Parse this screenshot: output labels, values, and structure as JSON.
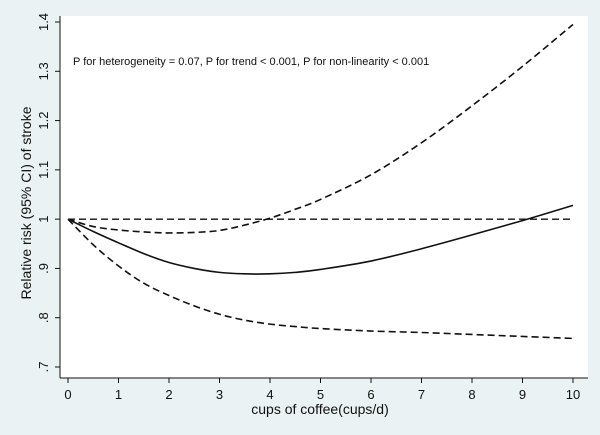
{
  "chart_data": {
    "type": "line",
    "xlabel": "cups of coffee(cups/d)",
    "ylabel": "Relative risk (95% CI) of stroke",
    "annotation": "P for heterogeneity = 0.07, P for trend < 0.001, P for non-linearity < 0.001",
    "xlim": [
      0,
      10
    ],
    "ylim": [
      0.7,
      1.4
    ],
    "x_ticks": [
      0,
      1,
      2,
      3,
      4,
      5,
      6,
      7,
      8,
      9,
      10
    ],
    "y_ticks": [
      {
        "value": 0.7,
        "label": ".7"
      },
      {
        "value": 0.8,
        "label": ".8"
      },
      {
        "value": 0.9,
        "label": ".9"
      },
      {
        "value": 1.0,
        "label": "1"
      },
      {
        "value": 1.1,
        "label": "1.1"
      },
      {
        "value": 1.2,
        "label": "1.2"
      },
      {
        "value": 1.3,
        "label": "1.3"
      },
      {
        "value": 1.4,
        "label": "1.4"
      }
    ],
    "grid": false,
    "reference_line": {
      "y": 1.0,
      "style": "dashed"
    },
    "series": [
      {
        "style": "solid",
        "x": [
          0,
          0.5,
          1,
          1.5,
          2,
          2.5,
          3,
          3.5,
          4,
          4.5,
          5,
          6,
          7,
          8,
          9,
          10
        ],
        "y": [
          1.0,
          0.975,
          0.952,
          0.93,
          0.912,
          0.9,
          0.892,
          0.889,
          0.889,
          0.892,
          0.898,
          0.915,
          0.94,
          0.968,
          0.997,
          1.028
        ]
      },
      {
        "style": "dashed",
        "x": [
          0,
          0.5,
          1,
          1.5,
          2,
          2.5,
          3,
          3.5,
          4,
          4.5,
          5,
          6,
          7,
          8,
          9,
          10
        ],
        "y": [
          1.0,
          0.985,
          0.978,
          0.974,
          0.972,
          0.973,
          0.977,
          0.988,
          1.002,
          1.02,
          1.04,
          1.09,
          1.155,
          1.23,
          1.31,
          1.395
        ]
      },
      {
        "style": "dashed",
        "x": [
          0,
          0.5,
          1,
          1.5,
          2,
          2.5,
          3,
          3.5,
          4,
          4.5,
          5,
          6,
          7,
          8,
          9,
          10
        ],
        "y": [
          1.0,
          0.948,
          0.905,
          0.87,
          0.845,
          0.824,
          0.807,
          0.795,
          0.787,
          0.782,
          0.778,
          0.773,
          0.77,
          0.766,
          0.762,
          0.758
        ]
      }
    ]
  }
}
